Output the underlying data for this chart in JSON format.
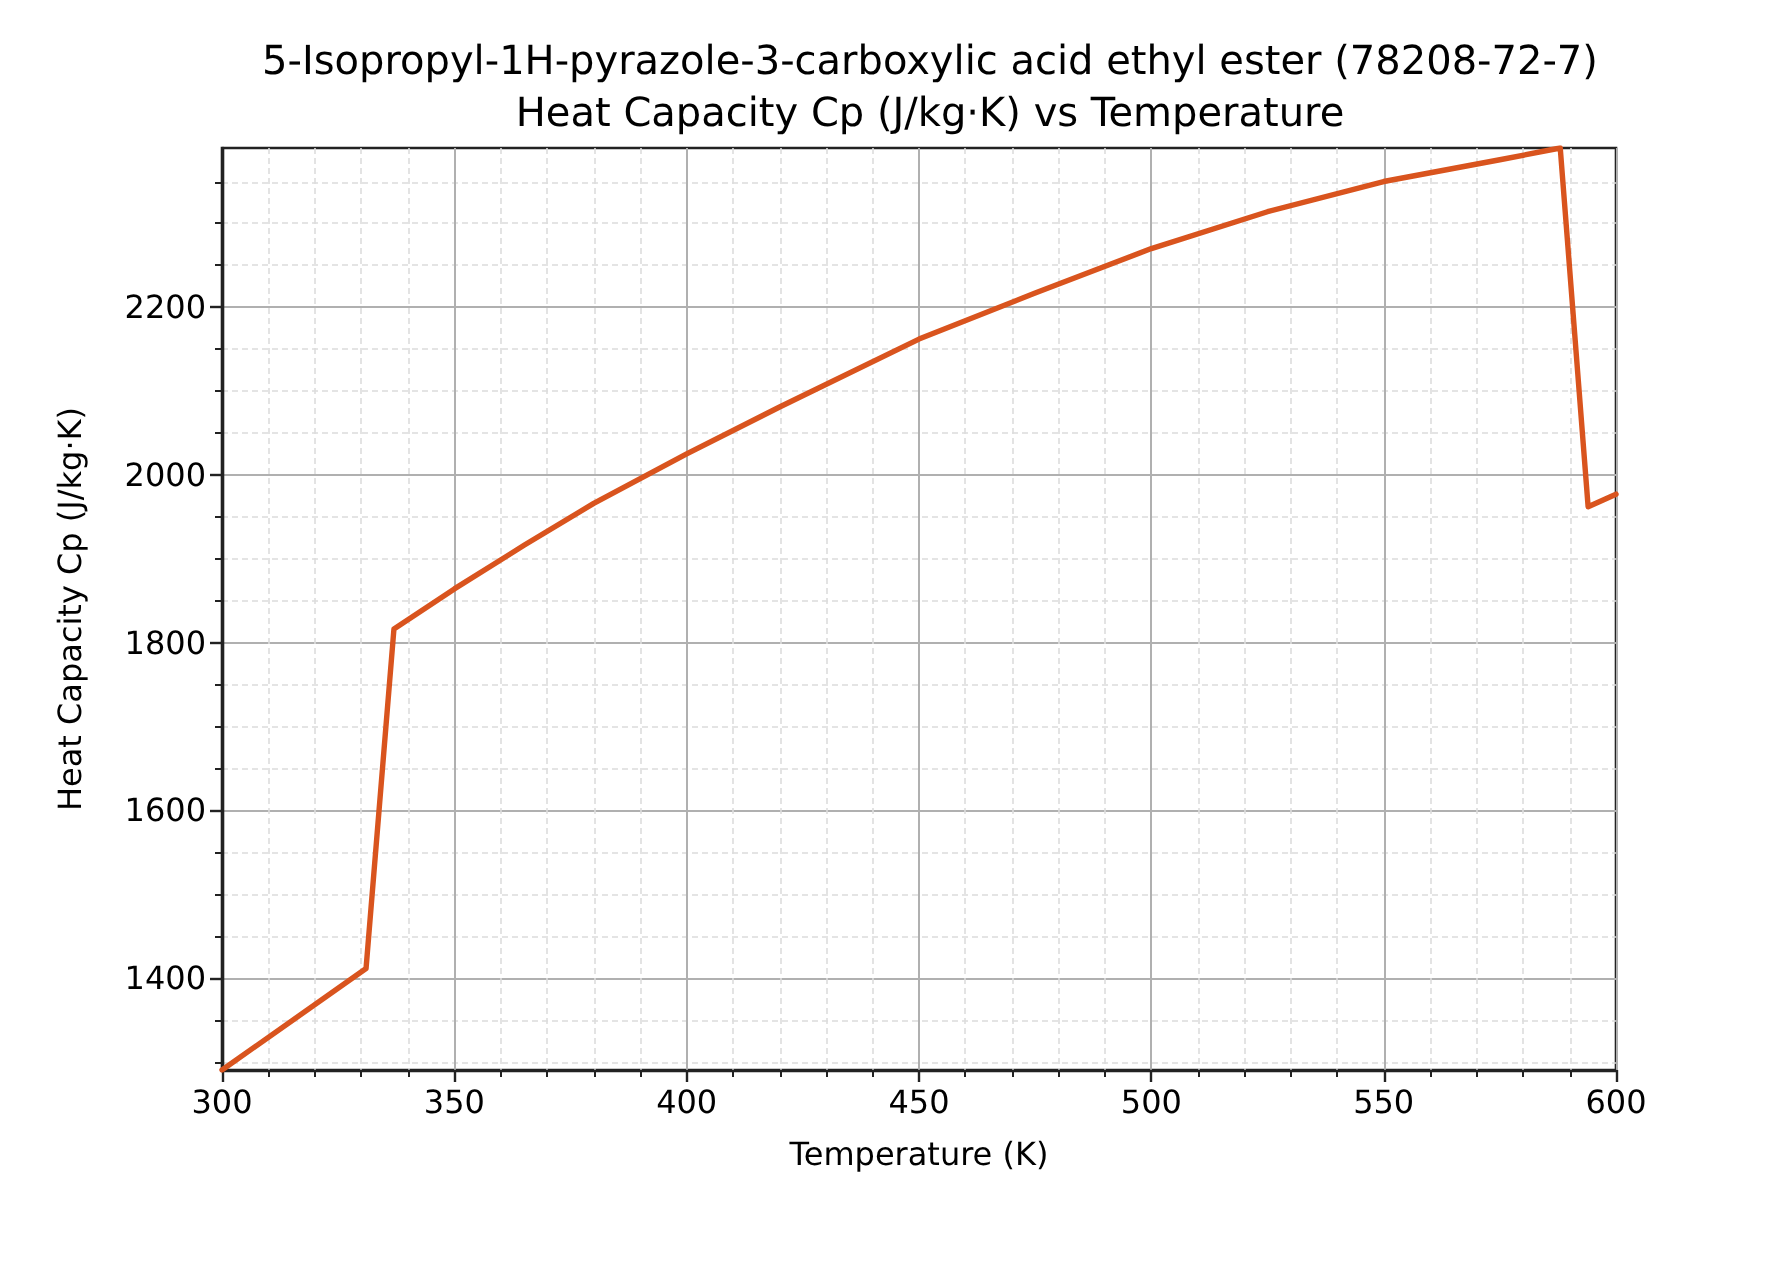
{
  "chart_data": {
    "type": "line",
    "title": "5-Isopropyl-1H-pyrazole-3-carboxylic acid ethyl ester (78208-72-7)\nHeat Capacity Cp (J/kg·K) vs Temperature",
    "xlabel": "Temperature (K)",
    "ylabel": "Heat Capacity Cp (J/kg·K)",
    "x": [
      300,
      331,
      337,
      350,
      365,
      380,
      400,
      420,
      450,
      475,
      500,
      525,
      550,
      575,
      588,
      594,
      600
    ],
    "values": [
      1290,
      1411,
      1816,
      1864,
      1916,
      1966,
      2025,
      2081,
      2162,
      2217,
      2270,
      2314,
      2350,
      2376,
      2390,
      1962,
      1977
    ],
    "color": "#d9541e",
    "marker": "none",
    "line_style": "solid",
    "grid": true,
    "xlim": [
      300,
      600
    ],
    "xticks": [
      300,
      {
        "value": 310,
        "label": null
      },
      {
        "value": 320,
        "label": null
      },
      {
        "value": 330,
        "label": null
      },
      {
        "value": 340,
        "label": null
      },
      350,
      {
        "value": 360,
        "label": null
      },
      {
        "value": 370,
        "label": null
      },
      {
        "value": 380,
        "label": null
      },
      {
        "value": 390,
        "label": null
      },
      400,
      {
        "value": 410,
        "label": null
      },
      {
        "value": 420,
        "label": null
      },
      {
        "value": 430,
        "label": null
      },
      {
        "value": 440,
        "label": null
      },
      450,
      {
        "value": 460,
        "label": null
      },
      {
        "value": 470,
        "label": null
      },
      {
        "value": 480,
        "label": null
      },
      {
        "value": 490,
        "label": null
      },
      500,
      {
        "value": 510,
        "label": null
      },
      {
        "value": 520,
        "label": null
      },
      {
        "value": 530,
        "label": null
      },
      {
        "value": 540,
        "label": null
      },
      550,
      {
        "value": 560,
        "label": null
      },
      {
        "value": 570,
        "label": null
      },
      {
        "value": 580,
        "label": null
      },
      {
        "value": 590,
        "label": null
      },
      600
    ],
    "ylim": [
      1290,
      2390
    ],
    "yticks": [
      {
        "value": 1300,
        "label": null
      },
      {
        "value": 1350,
        "label": null
      },
      1400,
      {
        "value": 1450,
        "label": null
      },
      {
        "value": 1500,
        "label": null
      },
      {
        "value": 1550,
        "label": null
      },
      1600,
      {
        "value": 1650,
        "label": null
      },
      {
        "value": 1700,
        "label": null
      },
      {
        "value": 1750,
        "label": null
      },
      1800,
      {
        "value": 1850,
        "label": null
      },
      {
        "value": 1900,
        "label": null
      },
      {
        "value": 1950,
        "label": null
      },
      2000,
      {
        "value": 2050,
        "label": null
      },
      {
        "value": 2100,
        "label": null
      },
      {
        "value": 2150,
        "label": null
      },
      2200,
      {
        "value": 2250,
        "label": null
      },
      {
        "value": 2300,
        "label": null
      },
      {
        "value": 2350,
        "label": null
      }
    ]
  }
}
